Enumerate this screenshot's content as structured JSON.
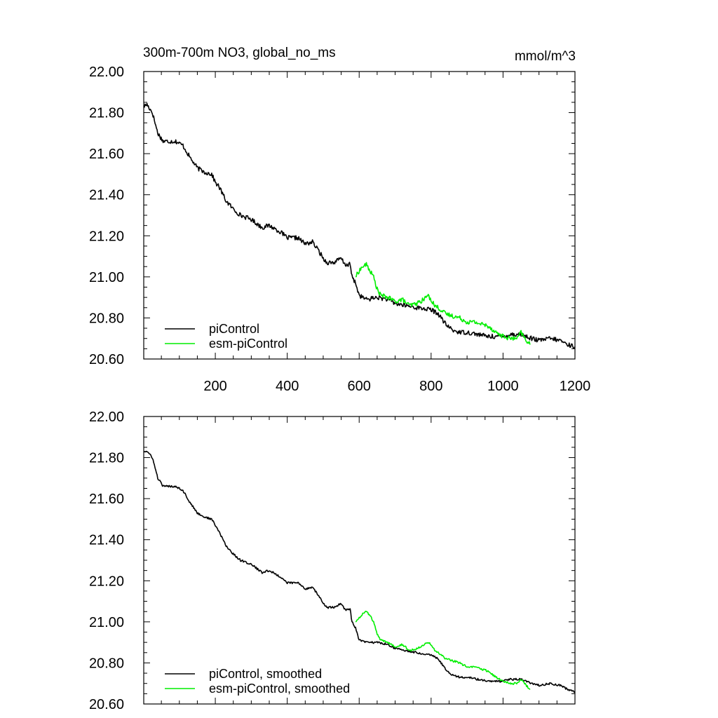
{
  "chart_data": [
    {
      "type": "line",
      "title": "300m-700m NO3, global_no_ms",
      "units": "mmol/m^3",
      "xlabel": "",
      "ylabel": "",
      "xlim": [
        1,
        1200
      ],
      "ylim": [
        20.6,
        22.0
      ],
      "xticks": [
        200,
        400,
        600,
        800,
        1000,
        1200
      ],
      "xtick_labels": [
        "200",
        "400",
        "600",
        "800",
        "1000",
        "1200"
      ],
      "yticks": [
        20.6,
        20.8,
        21.0,
        21.2,
        21.4,
        21.6,
        21.8,
        22.0
      ],
      "ytick_labels": [
        "20.60",
        "20.80",
        "21.00",
        "21.20",
        "21.40",
        "21.60",
        "21.80",
        "22.00"
      ],
      "grid": false,
      "legend_position": "bottom-left",
      "series": [
        {
          "name": "piControl",
          "color": "#000000",
          "x": [
            1,
            10,
            25,
            40,
            55,
            70,
            90,
            110,
            130,
            150,
            170,
            190,
            200,
            210,
            230,
            250,
            270,
            300,
            330,
            350,
            380,
            400,
            430,
            450,
            470,
            490,
            500,
            510,
            530,
            550,
            560,
            575,
            580,
            590,
            600,
            620,
            650,
            680,
            700,
            730,
            760,
            800,
            820,
            840,
            860,
            880,
            900,
            930,
            960,
            1000,
            1020,
            1050,
            1080,
            1100,
            1130,
            1160,
            1180,
            1200
          ],
          "y": [
            21.83,
            21.84,
            21.8,
            21.7,
            21.66,
            21.66,
            21.66,
            21.64,
            21.58,
            21.53,
            21.51,
            21.5,
            21.46,
            21.44,
            21.37,
            21.33,
            21.3,
            21.28,
            21.24,
            21.25,
            21.22,
            21.19,
            21.19,
            21.16,
            21.17,
            21.12,
            21.09,
            21.07,
            21.07,
            21.09,
            21.06,
            21.06,
            21.0,
            20.97,
            20.91,
            20.89,
            20.9,
            20.89,
            20.87,
            20.86,
            20.85,
            20.84,
            20.82,
            20.77,
            20.74,
            20.73,
            20.73,
            20.72,
            20.71,
            20.71,
            20.72,
            20.72,
            20.7,
            20.69,
            20.7,
            20.69,
            20.67,
            20.66
          ]
        },
        {
          "name": "esm-piControl",
          "color": "#00ee00",
          "x": [
            590,
            600,
            610,
            620,
            630,
            640,
            650,
            660,
            680,
            700,
            720,
            740,
            760,
            780,
            790,
            800,
            810,
            820,
            840,
            860,
            880,
            900,
            920,
            940,
            960,
            980,
            1000,
            1020,
            1040,
            1050,
            1060,
            1075
          ],
          "y": [
            21.0,
            21.03,
            21.05,
            21.06,
            21.03,
            21.0,
            20.94,
            20.91,
            20.9,
            20.88,
            20.89,
            20.86,
            20.87,
            20.89,
            20.91,
            20.89,
            20.86,
            20.85,
            20.82,
            20.81,
            20.8,
            20.78,
            20.78,
            20.77,
            20.76,
            20.73,
            20.71,
            20.7,
            20.7,
            20.73,
            20.7,
            20.67
          ]
        }
      ]
    },
    {
      "type": "line",
      "title": "",
      "xlabel": "",
      "ylabel": "",
      "xlim": [
        1,
        1200
      ],
      "ylim": [
        20.6,
        22.0
      ],
      "xticks": [
        200,
        400,
        600,
        800,
        1000,
        1200
      ],
      "yticks": [
        20.6,
        20.8,
        21.0,
        21.2,
        21.4,
        21.6,
        21.8,
        22.0
      ],
      "ytick_labels": [
        "20.60",
        "20.80",
        "21.00",
        "21.20",
        "21.40",
        "21.60",
        "21.80",
        "22.00"
      ],
      "grid": false,
      "legend_position": "bottom-left",
      "series": [
        {
          "name": "piControl, smoothed",
          "color": "#000000",
          "x": [
            1,
            10,
            25,
            40,
            55,
            70,
            90,
            110,
            130,
            150,
            170,
            190,
            200,
            210,
            230,
            250,
            270,
            300,
            330,
            350,
            380,
            400,
            430,
            450,
            470,
            490,
            500,
            510,
            530,
            550,
            560,
            575,
            580,
            590,
            600,
            620,
            650,
            680,
            700,
            730,
            760,
            800,
            820,
            840,
            860,
            880,
            900,
            930,
            960,
            1000,
            1020,
            1050,
            1080,
            1100,
            1130,
            1160,
            1180,
            1200
          ],
          "y": [
            21.83,
            21.83,
            21.8,
            21.7,
            21.66,
            21.66,
            21.66,
            21.64,
            21.58,
            21.53,
            21.51,
            21.5,
            21.47,
            21.44,
            21.37,
            21.33,
            21.3,
            21.28,
            21.24,
            21.25,
            21.22,
            21.19,
            21.19,
            21.16,
            21.17,
            21.12,
            21.09,
            21.07,
            21.07,
            21.09,
            21.06,
            21.06,
            21.0,
            20.97,
            20.91,
            20.9,
            20.9,
            20.89,
            20.87,
            20.86,
            20.85,
            20.84,
            20.82,
            20.77,
            20.74,
            20.73,
            20.73,
            20.72,
            20.71,
            20.71,
            20.72,
            20.72,
            20.7,
            20.69,
            20.7,
            20.69,
            20.67,
            20.66
          ]
        },
        {
          "name": "esm-piControl, smoothed",
          "color": "#00ee00",
          "x": [
            590,
            600,
            610,
            620,
            630,
            640,
            650,
            660,
            680,
            700,
            720,
            740,
            760,
            780,
            790,
            800,
            810,
            820,
            840,
            860,
            880,
            900,
            920,
            940,
            960,
            980,
            1000,
            1020,
            1040,
            1050,
            1060,
            1075
          ],
          "y": [
            21.0,
            21.02,
            21.04,
            21.05,
            21.03,
            21.0,
            20.94,
            20.91,
            20.9,
            20.88,
            20.89,
            20.86,
            20.87,
            20.89,
            20.9,
            20.89,
            20.86,
            20.85,
            20.82,
            20.81,
            20.8,
            20.78,
            20.78,
            20.77,
            20.76,
            20.73,
            20.71,
            20.7,
            20.7,
            20.72,
            20.7,
            20.67
          ]
        }
      ]
    }
  ]
}
